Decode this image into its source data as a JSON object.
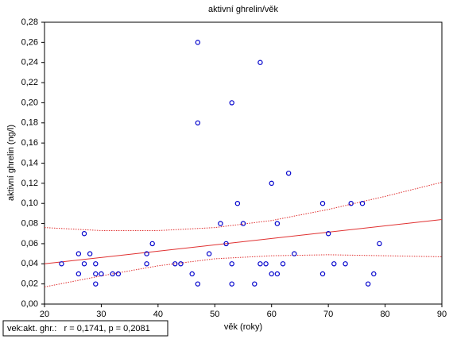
{
  "chart_data": {
    "type": "scatter",
    "title": "aktivní ghrelin/věk",
    "x_label": "věk (roky)",
    "y_label": "aktivní ghrelin (ng/l)",
    "annotation": "vek:akt. ghr.:   r = 0,1741, p = 0,2081",
    "xlim": [
      20,
      90
    ],
    "xticks": [
      20,
      30,
      40,
      50,
      60,
      70,
      80,
      90
    ],
    "ylim": [
      0,
      0.28
    ],
    "yticks": [
      {
        "value": 0,
        "label": "0,00"
      },
      {
        "value": 0.02,
        "label": "0,02"
      },
      {
        "value": 0.04,
        "label": "0,04"
      },
      {
        "value": 0.06,
        "label": "0,06"
      },
      {
        "value": 0.08,
        "label": "0,08"
      },
      {
        "value": 0.1,
        "label": "0,10"
      },
      {
        "value": 0.12,
        "label": "0,12"
      },
      {
        "value": 0.14,
        "label": "0,14"
      },
      {
        "value": 0.16,
        "label": "0,16"
      },
      {
        "value": 0.18,
        "label": "0,18"
      },
      {
        "value": 0.2,
        "label": "0,20"
      },
      {
        "value": 0.22,
        "label": "0,22"
      },
      {
        "value": 0.24,
        "label": "0,24"
      },
      {
        "value": 0.26,
        "label": "0,26"
      },
      {
        "value": 0.28,
        "label": "0,28"
      }
    ],
    "points": {
      "color": "#0000cc",
      "x": [
        23,
        26,
        26,
        27,
        27,
        28,
        29,
        29,
        29,
        30,
        32,
        33,
        38,
        38,
        39,
        43,
        44,
        46,
        47,
        47,
        47,
        49,
        51,
        52,
        53,
        53,
        53,
        54,
        55,
        57,
        58,
        58,
        59,
        60,
        60,
        61,
        61,
        62,
        63,
        64,
        69,
        69,
        70,
        71,
        73,
        74,
        76,
        77,
        78,
        79
      ],
      "values": [
        0.04,
        0.05,
        0.03,
        0.07,
        0.04,
        0.05,
        0.04,
        0.03,
        0.02,
        0.03,
        0.03,
        0.03,
        0.05,
        0.04,
        0.06,
        0.04,
        0.04,
        0.03,
        0.26,
        0.18,
        0.02,
        0.05,
        0.08,
        0.06,
        0.2,
        0.04,
        0.02,
        0.1,
        0.08,
        0.02,
        0.24,
        0.04,
        0.04,
        0.12,
        0.03,
        0.08,
        0.03,
        0.04,
        0.13,
        0.05,
        0.1,
        0.03,
        0.07,
        0.04,
        0.04,
        0.1,
        0.1,
        0.02,
        0.03,
        0.06
      ]
    },
    "fit": {
      "color": "#e03030",
      "x": [
        20,
        90
      ],
      "values": [
        0.04,
        0.084
      ]
    },
    "bands": [
      {
        "color": "#e03030",
        "x": [
          20,
          30,
          40,
          50,
          60,
          70,
          80,
          90
        ],
        "values": [
          0.076,
          0.073,
          0.073,
          0.076,
          0.083,
          0.094,
          0.107,
          0.121
        ]
      },
      {
        "color": "#e03030",
        "x": [
          20,
          30,
          40,
          50,
          60,
          70,
          80,
          90
        ],
        "values": [
          0.017,
          0.028,
          0.038,
          0.045,
          0.048,
          0.049,
          0.048,
          0.047
        ]
      }
    ]
  }
}
